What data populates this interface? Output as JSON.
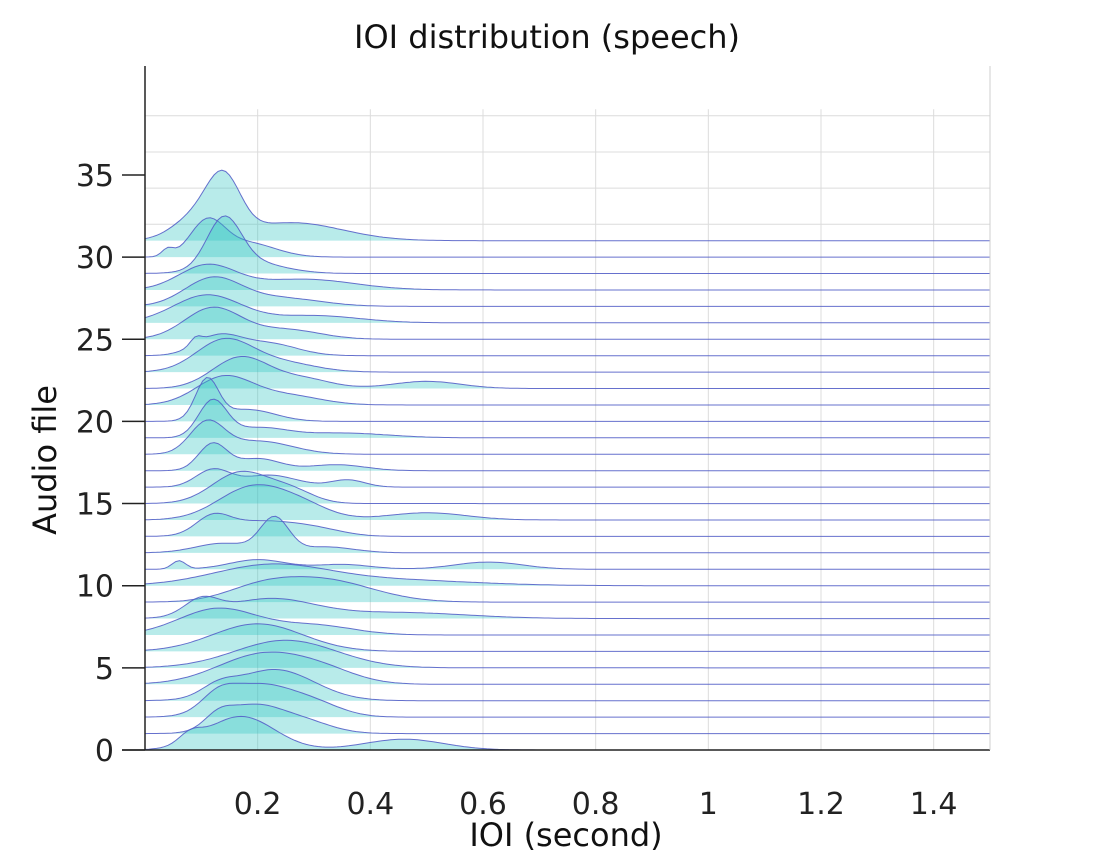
{
  "chart_data": {
    "type": "ridgeline",
    "title": "IOI distribution (speech)",
    "xlabel": "IOI (second)",
    "ylabel": "Audio file",
    "x_ticks": [
      0.2,
      0.4,
      0.6,
      0.8,
      1,
      1.2,
      1.4
    ],
    "y_ticks": [
      0,
      5,
      10,
      15,
      20,
      25,
      30,
      35
    ],
    "xlim": [
      0,
      1.5
    ],
    "ylim": [
      0,
      39
    ],
    "grid": true,
    "fill_color": "#2ec4c0",
    "line_color": "#5560c8",
    "series": [
      {
        "file": 1,
        "peaks": [
          [
            0.17,
            2.8,
            0.06
          ],
          [
            0.08,
            0.8,
            0.02
          ],
          [
            0.46,
            0.9,
            0.07
          ]
        ]
      },
      {
        "file": 2,
        "peaks": [
          [
            0.19,
            2.2,
            0.05
          ],
          [
            0.13,
            1.0,
            0.025
          ],
          [
            0.28,
            1.0,
            0.05
          ]
        ]
      },
      {
        "file": 3,
        "peaks": [
          [
            0.2,
            2.6,
            0.06
          ],
          [
            0.13,
            1.2,
            0.03
          ],
          [
            0.3,
            1.0,
            0.05
          ]
        ]
      },
      {
        "file": 4,
        "peaks": [
          [
            0.23,
            2.6,
            0.07
          ],
          [
            0.13,
            0.8,
            0.03
          ]
        ]
      },
      {
        "file": 5,
        "peaks": [
          [
            0.21,
            2.5,
            0.08
          ],
          [
            0.32,
            0.8,
            0.06
          ]
        ]
      },
      {
        "file": 6,
        "peaks": [
          [
            0.25,
            2.3,
            0.09
          ]
        ]
      },
      {
        "file": 7,
        "peaks": [
          [
            0.2,
            2.3,
            0.08
          ]
        ]
      },
      {
        "file": 8,
        "peaks": [
          [
            0.13,
            2.2,
            0.07
          ],
          [
            0.3,
            0.8,
            0.07
          ]
        ]
      },
      {
        "file": 9,
        "peaks": [
          [
            0.1,
            1.3,
            0.03
          ],
          [
            0.22,
            1.6,
            0.08
          ],
          [
            0.45,
            0.5,
            0.12
          ]
        ]
      },
      {
        "file": 10,
        "peaks": [
          [
            0.31,
            1.9,
            0.09
          ],
          [
            0.2,
            0.8,
            0.06
          ]
        ]
      },
      {
        "file": 11,
        "peaks": [
          [
            0.22,
            1.6,
            0.1
          ],
          [
            0.42,
            0.5,
            0.15
          ]
        ]
      },
      {
        "file": 12,
        "peaks": [
          [
            0.06,
            0.7,
            0.012
          ],
          [
            0.2,
            0.8,
            0.05
          ],
          [
            0.35,
            0.4,
            0.05
          ],
          [
            0.61,
            0.6,
            0.06
          ]
        ]
      },
      {
        "file": 13,
        "peaks": [
          [
            0.23,
            2.8,
            0.025
          ],
          [
            0.14,
            0.8,
            0.05
          ],
          [
            0.32,
            0.5,
            0.05
          ]
        ]
      },
      {
        "file": 14,
        "peaks": [
          [
            0.12,
            1.4,
            0.03
          ],
          [
            0.2,
            1.2,
            0.06
          ],
          [
            0.3,
            0.6,
            0.05
          ]
        ]
      },
      {
        "file": 15,
        "peaks": [
          [
            0.19,
            2.7,
            0.06
          ],
          [
            0.28,
            1.0,
            0.05
          ],
          [
            0.5,
            0.6,
            0.07
          ]
        ]
      },
      {
        "file": 16,
        "peaks": [
          [
            0.17,
            2.6,
            0.05
          ],
          [
            0.26,
            1.0,
            0.04
          ]
        ]
      },
      {
        "file": 17,
        "peaks": [
          [
            0.12,
            1.4,
            0.03
          ],
          [
            0.22,
            1.0,
            0.05
          ],
          [
            0.36,
            0.6,
            0.03
          ]
        ]
      },
      {
        "file": 18,
        "peaks": [
          [
            0.12,
            2.2,
            0.025
          ],
          [
            0.2,
            1.0,
            0.04
          ],
          [
            0.34,
            0.5,
            0.05
          ]
        ]
      },
      {
        "file": 19,
        "peaks": [
          [
            0.11,
            2.5,
            0.03
          ],
          [
            0.2,
            1.1,
            0.06
          ]
        ]
      },
      {
        "file": 20,
        "peaks": [
          [
            0.12,
            3.0,
            0.025
          ],
          [
            0.2,
            0.8,
            0.05
          ],
          [
            0.35,
            0.4,
            0.08
          ]
        ]
      },
      {
        "file": 21,
        "peaks": [
          [
            0.11,
            3.3,
            0.02
          ],
          [
            0.18,
            1.0,
            0.05
          ]
        ]
      },
      {
        "file": 22,
        "peaks": [
          [
            0.14,
            2.3,
            0.05
          ],
          [
            0.25,
            0.8,
            0.06
          ]
        ]
      },
      {
        "file": 23,
        "peaks": [
          [
            0.17,
            2.6,
            0.05
          ],
          [
            0.28,
            0.8,
            0.05
          ],
          [
            0.5,
            0.6,
            0.06
          ]
        ]
      },
      {
        "file": 24,
        "peaks": [
          [
            0.14,
            2.6,
            0.05
          ],
          [
            0.24,
            0.8,
            0.06
          ]
        ]
      },
      {
        "file": 25,
        "peaks": [
          [
            0.09,
            0.6,
            0.01
          ],
          [
            0.13,
            1.6,
            0.04
          ],
          [
            0.22,
            1.0,
            0.05
          ]
        ]
      },
      {
        "file": 26,
        "peaks": [
          [
            0.12,
            2.6,
            0.05
          ],
          [
            0.25,
            0.8,
            0.06
          ]
        ]
      },
      {
        "file": 27,
        "peaks": [
          [
            0.11,
            2.3,
            0.06
          ],
          [
            0.3,
            0.6,
            0.08
          ]
        ]
      },
      {
        "file": 28,
        "peaks": [
          [
            0.12,
            2.3,
            0.05
          ],
          [
            0.24,
            0.7,
            0.07
          ]
        ]
      },
      {
        "file": 29,
        "peaks": [
          [
            0.11,
            2.0,
            0.05
          ],
          [
            0.28,
            0.9,
            0.09
          ]
        ]
      },
      {
        "file": 30,
        "peaks": [
          [
            0.14,
            4.0,
            0.03
          ],
          [
            0.18,
            1.0,
            0.06
          ]
        ]
      },
      {
        "file": 31,
        "peaks": [
          [
            0.04,
            0.6,
            0.01
          ],
          [
            0.11,
            2.8,
            0.03
          ],
          [
            0.18,
            1.2,
            0.05
          ]
        ]
      },
      {
        "file": 32,
        "peaks": [
          [
            0.14,
            4.4,
            0.03
          ],
          [
            0.09,
            1.8,
            0.04
          ],
          [
            0.26,
            1.5,
            0.09
          ]
        ]
      }
    ]
  }
}
